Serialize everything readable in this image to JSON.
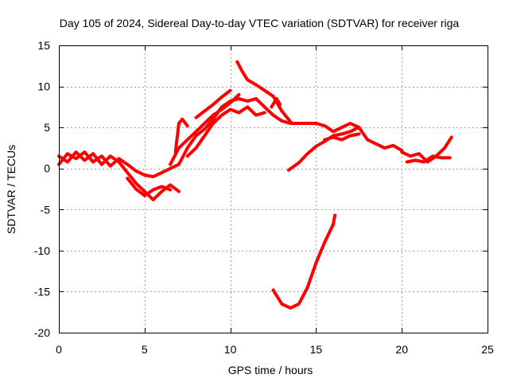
{
  "chart_data": {
    "type": "line",
    "title": "Day 105 of 2024, Sidereal Day-to-day VTEC variation (SDTVAR) for receiver riga",
    "xlabel": "GPS time / hours",
    "ylabel": "SDTVAR / TECUs",
    "xlim": [
      0,
      25
    ],
    "ylim": [
      -20,
      15
    ],
    "xticks": [
      0,
      5,
      10,
      15,
      20,
      25
    ],
    "yticks": [
      -20,
      -15,
      -10,
      -5,
      0,
      5,
      10,
      15
    ],
    "grid": true,
    "color": "#ff0000",
    "series": [
      {
        "name": "track-1",
        "points": [
          [
            0,
            0.5
          ],
          [
            0.5,
            1.8
          ],
          [
            1,
            1.2
          ],
          [
            1.5,
            2
          ],
          [
            2,
            0.8
          ],
          [
            2.5,
            1.5
          ],
          [
            3,
            0.3
          ],
          [
            3.5,
            1.2
          ],
          [
            4,
            0.5
          ],
          [
            4.5,
            -0.3
          ],
          [
            5,
            -0.8
          ],
          [
            5.5,
            -1
          ],
          [
            6,
            -0.5
          ],
          [
            6.5,
            0
          ],
          [
            7,
            0.5
          ],
          [
            7.5,
            2.5
          ],
          [
            8,
            4
          ],
          [
            8.5,
            4.8
          ],
          [
            9,
            6
          ],
          [
            9.5,
            7.5
          ],
          [
            10,
            8.2
          ],
          [
            10.5,
            8.5
          ],
          [
            11,
            8.2
          ],
          [
            11.5,
            8.5
          ],
          [
            12,
            7.5
          ],
          [
            12.5,
            6.5
          ],
          [
            13,
            5.8
          ],
          [
            13.5,
            5.5
          ],
          [
            14,
            5.5
          ],
          [
            15,
            5.5
          ],
          [
            15.5,
            5.2
          ],
          [
            16,
            4.5
          ],
          [
            16.5,
            5
          ],
          [
            17,
            5.5
          ],
          [
            17.5,
            5
          ],
          [
            18,
            3.5
          ],
          [
            18.5,
            3
          ],
          [
            19,
            2.5
          ],
          [
            19.5,
            2.8
          ],
          [
            20,
            2.2
          ]
        ]
      },
      {
        "name": "track-2",
        "points": [
          [
            0,
            1.5
          ],
          [
            0.5,
            0.8
          ],
          [
            1,
            2
          ],
          [
            1.5,
            1
          ],
          [
            2,
            1.8
          ],
          [
            2.5,
            0.5
          ],
          [
            3,
            1.5
          ],
          [
            3.5,
            0.8
          ],
          [
            4,
            -0.5
          ],
          [
            4.5,
            -1.8
          ],
          [
            5,
            -2.8
          ],
          [
            5.5,
            -3.8
          ],
          [
            6,
            -2.8
          ],
          [
            6.5,
            -2
          ],
          [
            7,
            -2.8
          ]
        ]
      },
      {
        "name": "track-3",
        "points": [
          [
            4,
            -1.2
          ],
          [
            4.5,
            -2.5
          ],
          [
            5,
            -3.3
          ],
          [
            5.5,
            -2.6
          ],
          [
            6,
            -2.2
          ],
          [
            6.5,
            -2.6
          ]
        ]
      },
      {
        "name": "track-4",
        "points": [
          [
            6.5,
            0.5
          ],
          [
            7,
            2.5
          ],
          [
            7.5,
            3.5
          ],
          [
            8,
            4.5
          ],
          [
            8.5,
            5.5
          ],
          [
            9,
            6.5
          ],
          [
            9.5,
            7.2
          ],
          [
            10,
            8
          ],
          [
            10.5,
            9
          ]
        ]
      },
      {
        "name": "track-5",
        "points": [
          [
            6.8,
            2
          ],
          [
            7,
            5.5
          ],
          [
            7.2,
            6
          ],
          [
            7.5,
            5.2
          ]
        ]
      },
      {
        "name": "track-6",
        "points": [
          [
            7.5,
            1.5
          ],
          [
            8,
            2.5
          ],
          [
            8.5,
            4
          ],
          [
            9,
            5.5
          ],
          [
            9.5,
            6.5
          ],
          [
            10,
            7.2
          ],
          [
            10.5,
            6.8
          ],
          [
            11,
            7.5
          ],
          [
            11.5,
            6.5
          ],
          [
            12,
            6.8
          ]
        ]
      },
      {
        "name": "track-7",
        "points": [
          [
            8,
            6.2
          ],
          [
            8.5,
            7
          ],
          [
            9,
            7.8
          ],
          [
            9.5,
            8.7
          ],
          [
            10,
            9.5
          ]
        ]
      },
      {
        "name": "track-8",
        "points": [
          [
            10.4,
            13
          ],
          [
            10.7,
            11.8
          ],
          [
            11,
            10.8
          ],
          [
            11.5,
            10.2
          ],
          [
            12,
            9.5
          ],
          [
            12.5,
            8.8
          ],
          [
            13,
            7
          ],
          [
            13.5,
            5.7
          ]
        ]
      },
      {
        "name": "track-9",
        "points": [
          [
            12.4,
            7.5
          ],
          [
            12.7,
            8.5
          ],
          [
            12.9,
            7.8
          ]
        ]
      },
      {
        "name": "track-10",
        "points": [
          [
            13.4,
            -0.2
          ],
          [
            14,
            0.7
          ],
          [
            14.5,
            1.8
          ],
          [
            15,
            2.7
          ],
          [
            15.5,
            3.3
          ],
          [
            16,
            4
          ],
          [
            16.5,
            4.2
          ],
          [
            17,
            4.5
          ],
          [
            17.5,
            5
          ]
        ]
      },
      {
        "name": "track-11",
        "points": [
          [
            15.5,
            3.5
          ],
          [
            16,
            3.8
          ],
          [
            16.5,
            3.5
          ],
          [
            17,
            4
          ],
          [
            17.5,
            4.2
          ]
        ]
      },
      {
        "name": "track-12",
        "points": [
          [
            20.3,
            0.8
          ],
          [
            20.8,
            1
          ],
          [
            21.3,
            0.8
          ],
          [
            21.8,
            1.5
          ],
          [
            22.3,
            1.3
          ],
          [
            22.8,
            1.3
          ]
        ]
      },
      {
        "name": "track-13",
        "points": [
          [
            20,
            2
          ],
          [
            20.5,
            1.5
          ],
          [
            21,
            1.8
          ],
          [
            21.5,
            0.8
          ],
          [
            22,
            1.5
          ],
          [
            22.5,
            2.5
          ],
          [
            22.9,
            3.8
          ]
        ]
      },
      {
        "name": "track-14",
        "points": [
          [
            12.5,
            -14.8
          ],
          [
            13,
            -16.5
          ],
          [
            13.5,
            -17
          ],
          [
            14,
            -16.5
          ],
          [
            14.5,
            -14.5
          ],
          [
            15,
            -11.5
          ],
          [
            15.5,
            -9
          ],
          [
            16,
            -6.8
          ],
          [
            16.1,
            -5.7
          ]
        ]
      }
    ]
  }
}
